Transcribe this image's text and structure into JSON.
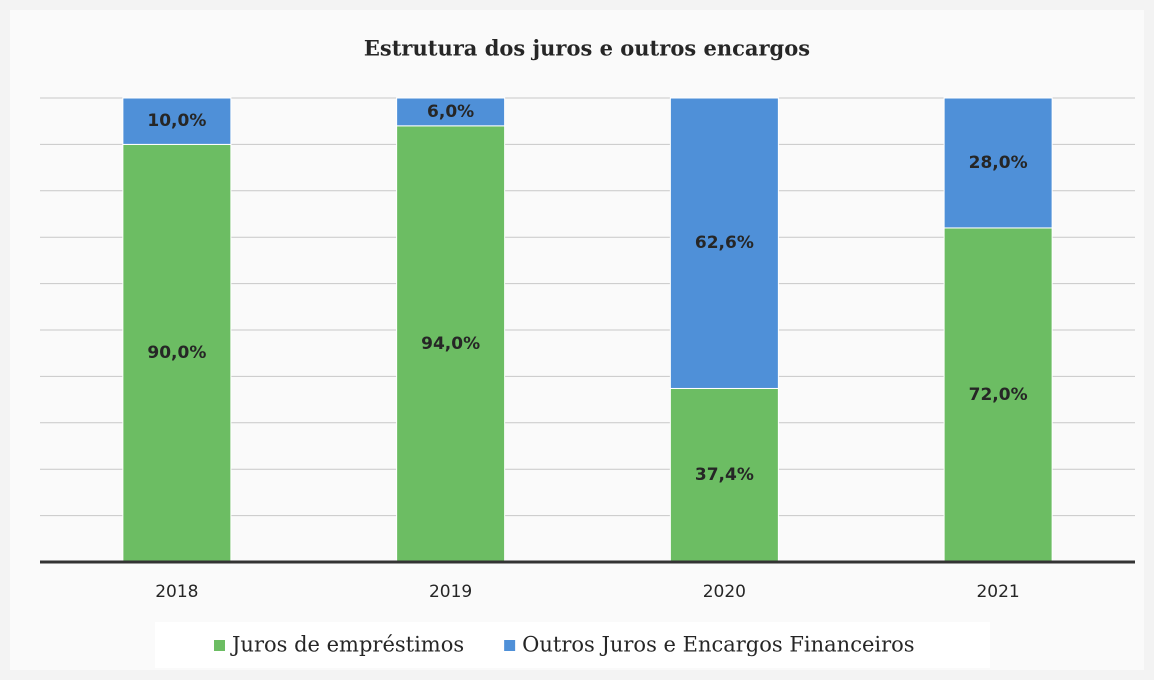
{
  "chart_data": {
    "type": "stacked_bar",
    "title": "Estrutura dos juros e outros encargos",
    "categories": [
      "2018",
      "2019",
      "2020",
      "2021"
    ],
    "series": [
      {
        "name": "Juros de empréstimos",
        "color": "#6cbd63",
        "values": [
          90.0,
          94.0,
          37.4,
          72.0
        ],
        "value_labels": [
          "90,0%",
          "94,0%",
          "37,4%",
          "72,0%"
        ]
      },
      {
        "name": "Outros Juros e Encargos Financeiros",
        "color": "#4f90d8",
        "values": [
          10.0,
          6.0,
          62.6,
          28.0
        ],
        "value_labels": [
          "10,0%",
          "6,0%",
          "62,6%",
          "28,0%"
        ]
      }
    ],
    "ylim": [
      0,
      100
    ],
    "yticks": [
      0,
      10,
      20,
      30,
      40,
      50,
      60,
      70,
      80,
      90,
      100
    ],
    "grid": true,
    "legend": "bottom"
  }
}
